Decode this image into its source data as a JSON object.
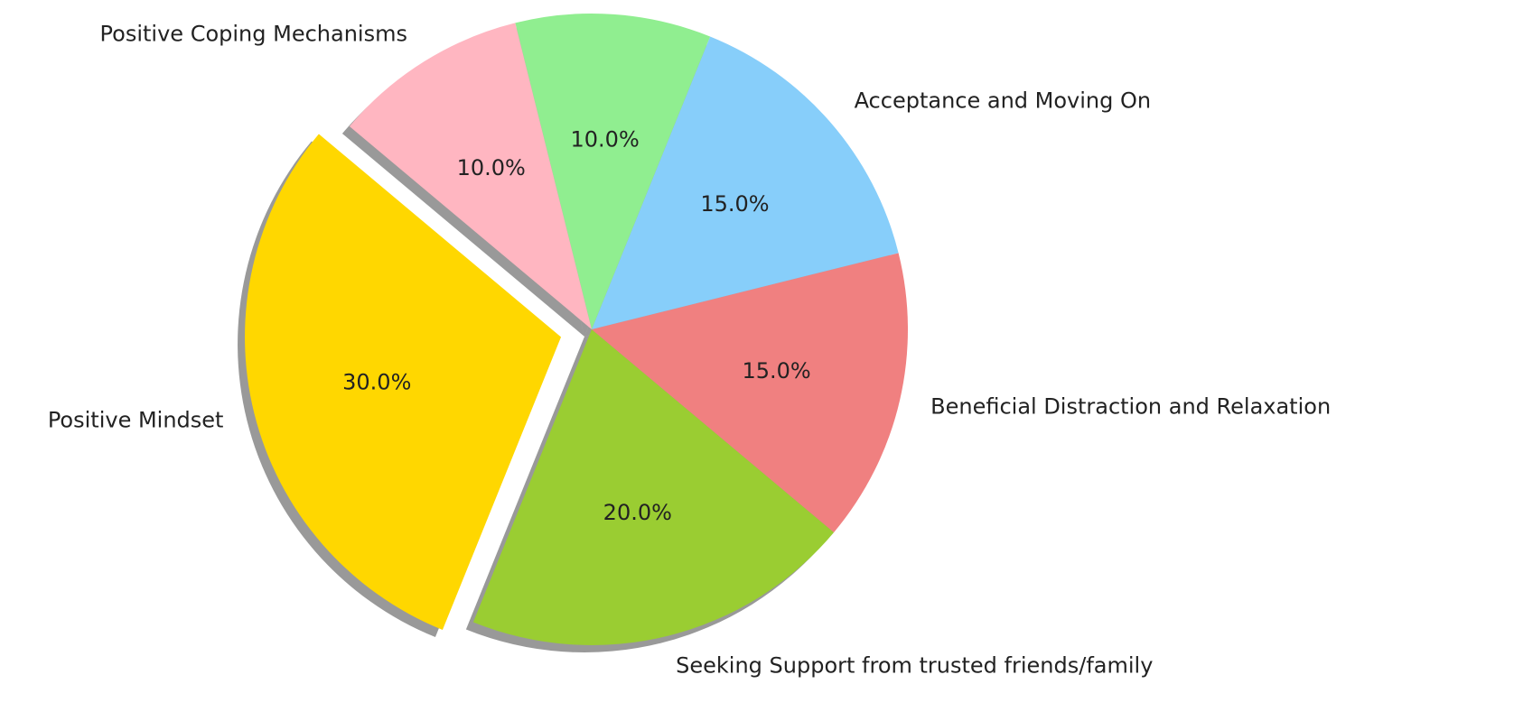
{
  "chart_data": {
    "type": "pie",
    "categories": [
      "Positive Mindset",
      "Seeking Support from trusted friends/family",
      "Beneficial Distraction and Relaxation",
      "Acceptance and Moving On",
      null,
      "Positive Coping Mechanisms"
    ],
    "values": [
      30,
      20,
      15,
      15,
      10,
      10
    ],
    "value_labels": [
      "30.0%",
      "20.0%",
      "15.0%",
      "15.0%",
      "10.0%",
      "10.0%"
    ],
    "colors": [
      "#ffd700",
      "#9acd32",
      "#f08080",
      "#87cefa",
      "#90ee90",
      "#ffb6c1"
    ],
    "explode": [
      0.1,
      0,
      0,
      0,
      0,
      0
    ],
    "startangle": 140,
    "shadow": true
  }
}
